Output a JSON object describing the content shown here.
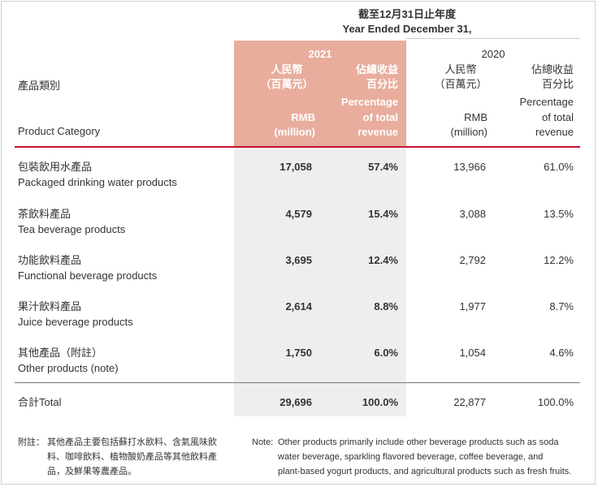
{
  "header": {
    "period_cn": "截至12月31日止年度",
    "period_en": "Year Ended December 31,",
    "category_cn": "產品類別",
    "category_en": "Product Category",
    "year_2021": "2021",
    "year_2020": "2020",
    "rmb_cn": "人民幣",
    "rmb_unit_cn": "（百萬元）",
    "pct_cn_1": "佔總收益",
    "pct_cn_2": "百分比",
    "rmb_en_1": "RMB",
    "rmb_en_2": "(million)",
    "pct_en_1": "Percentage",
    "pct_en_2": "of total",
    "pct_en_3": "revenue"
  },
  "rows": [
    {
      "cn": "包裝飲用水產品",
      "en": "Packaged drinking water products",
      "rmb_2021": "17,058",
      "pct_2021": "57.4%",
      "rmb_2020": "13,966",
      "pct_2020": "61.0%"
    },
    {
      "cn": "茶飲料產品",
      "en": "Tea beverage products",
      "rmb_2021": "4,579",
      "pct_2021": "15.4%",
      "rmb_2020": "3,088",
      "pct_2020": "13.5%"
    },
    {
      "cn": "功能飲料產品",
      "en": "Functional beverage products",
      "rmb_2021": "3,695",
      "pct_2021": "12.4%",
      "rmb_2020": "2,792",
      "pct_2020": "12.2%"
    },
    {
      "cn": "果汁飲料產品",
      "en": "Juice beverage products",
      "rmb_2021": "2,614",
      "pct_2021": "8.8%",
      "rmb_2020": "1,977",
      "pct_2020": "8.7%"
    },
    {
      "cn": "其他產品（附註）",
      "en": "Other products (note)",
      "rmb_2021": "1,750",
      "pct_2021": "6.0%",
      "rmb_2020": "1,054",
      "pct_2020": "4.6%"
    }
  ],
  "total": {
    "label": "合計Total",
    "rmb_2021": "29,696",
    "pct_2021": "100.0%",
    "rmb_2020": "22,877",
    "pct_2020": "100.0%"
  },
  "notes": {
    "cn_label": "附註：",
    "cn_line_1": "其他產品主要包括蘇打水飲料、含氣風味飲",
    "cn_line_2": "料、咖啡飲料、植物酸奶產品等其他飲料產",
    "cn_line_3": "品，及鮮果等農產品。",
    "en_label": "Note:",
    "en_line_1": "Other products primarily include other beverage products such as soda",
    "en_line_2": "water beverage, sparkling flavored beverage, coffee beverage, and",
    "en_line_3": "plant-based yogurt products, and agricultural products such as fresh fruits."
  }
}
